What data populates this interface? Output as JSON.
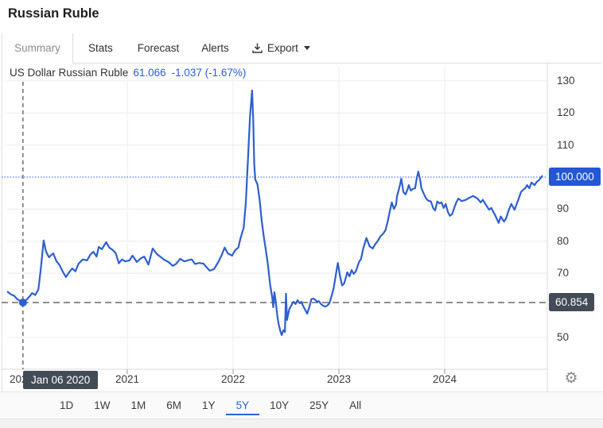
{
  "title": "Russian Ruble",
  "tabs": {
    "summary": "Summary",
    "stats": "Stats",
    "forecast": "Forecast",
    "alerts": "Alerts",
    "export": "Export"
  },
  "quote": {
    "instrument": "US Dollar Russian Ruble",
    "price": "61.066",
    "change": "-1.037",
    "change_pct": "(-1.67%)"
  },
  "range_buttons": {
    "items": [
      "1D",
      "1W",
      "1M",
      "6M",
      "1Y",
      "5Y",
      "10Y",
      "25Y",
      "All"
    ],
    "active": "5Y"
  },
  "icons": {
    "export": "download-icon",
    "export_caret": "chevron-down-icon",
    "settings": "gear-icon",
    "settings_glyph": "⚙"
  },
  "colors": {
    "line": "#2e5fd0",
    "accent_blue": "#2457d5",
    "badge_dark": "#434b57",
    "link_blue": "#2a5bd7",
    "grid": "#ececec",
    "axis": "#d9d9d9",
    "crosshair": "#4a4a4a",
    "active_range": "#2a62d9"
  },
  "chart_data": {
    "type": "line",
    "title": "US Dollar Russian Ruble",
    "x_ticks": [
      {
        "t": 2020,
        "label": "2020"
      },
      {
        "t": 2021,
        "label": "2021"
      },
      {
        "t": 2022,
        "label": "2022"
      },
      {
        "t": 2023,
        "label": "2023"
      },
      {
        "t": 2024,
        "label": "2024"
      }
    ],
    "y_ticks": [
      130,
      120,
      110,
      90,
      80,
      70,
      50
    ],
    "ylim": [
      46.5,
      133
    ],
    "xlim": [
      2019.87,
      2025.05
    ],
    "grid": true,
    "legend": "none",
    "ref_line": {
      "value": 100,
      "label": "100.000",
      "style": "dotted-blue"
    },
    "crosshair": {
      "t": 2020.014,
      "date_label": "Jan 06 2020",
      "value": 60.854,
      "value_label": "60.854"
    },
    "series": [
      {
        "name": "US Dollar Russian Ruble",
        "color": "#2e5fd0",
        "points": [
          [
            2019.87,
            64.2
          ],
          [
            2019.9,
            63.4
          ],
          [
            2019.93,
            63.0
          ],
          [
            2019.96,
            61.9
          ],
          [
            2019.99,
            61.3
          ],
          [
            2020.014,
            60.854
          ],
          [
            2020.05,
            61.8
          ],
          [
            2020.08,
            62.9
          ],
          [
            2020.1,
            63.8
          ],
          [
            2020.13,
            63.2
          ],
          [
            2020.16,
            65.0
          ],
          [
            2020.18,
            70.5
          ],
          [
            2020.21,
            80.2
          ],
          [
            2020.23,
            77.0
          ],
          [
            2020.24,
            76.2
          ],
          [
            2020.26,
            75.0
          ],
          [
            2020.3,
            76.2
          ],
          [
            2020.33,
            73.8
          ],
          [
            2020.36,
            72.5
          ],
          [
            2020.39,
            70.5
          ],
          [
            2020.42,
            68.8
          ],
          [
            2020.45,
            70.3
          ],
          [
            2020.48,
            71.5
          ],
          [
            2020.51,
            70.6
          ],
          [
            2020.54,
            73.0
          ],
          [
            2020.58,
            74.3
          ],
          [
            2020.62,
            74.0
          ],
          [
            2020.65,
            75.8
          ],
          [
            2020.68,
            76.7
          ],
          [
            2020.71,
            75.2
          ],
          [
            2020.73,
            78.2
          ],
          [
            2020.76,
            77.5
          ],
          [
            2020.8,
            79.7
          ],
          [
            2020.83,
            78.0
          ],
          [
            2020.86,
            77.3
          ],
          [
            2020.89,
            76.3
          ],
          [
            2020.92,
            73.1
          ],
          [
            2020.95,
            74.3
          ],
          [
            2020.98,
            73.7
          ],
          [
            2021.02,
            74.0
          ],
          [
            2021.05,
            75.5
          ],
          [
            2021.09,
            73.5
          ],
          [
            2021.13,
            74.7
          ],
          [
            2021.16,
            75.2
          ],
          [
            2021.2,
            72.7
          ],
          [
            2021.24,
            77.7
          ],
          [
            2021.28,
            76.0
          ],
          [
            2021.31,
            75.2
          ],
          [
            2021.35,
            74.2
          ],
          [
            2021.39,
            73.5
          ],
          [
            2021.43,
            72.3
          ],
          [
            2021.46,
            72.9
          ],
          [
            2021.5,
            74.5
          ],
          [
            2021.54,
            73.7
          ],
          [
            2021.57,
            74.0
          ],
          [
            2021.61,
            74.3
          ],
          [
            2021.64,
            72.9
          ],
          [
            2021.68,
            73.2
          ],
          [
            2021.72,
            73.0
          ],
          [
            2021.75,
            71.8
          ],
          [
            2021.78,
            70.8
          ],
          [
            2021.82,
            71.3
          ],
          [
            2021.86,
            73.5
          ],
          [
            2021.89,
            75.5
          ],
          [
            2021.92,
            78.0
          ],
          [
            2021.95,
            76.2
          ],
          [
            2021.99,
            75.5
          ],
          [
            2022.02,
            77.2
          ],
          [
            2022.05,
            78.0
          ],
          [
            2022.07,
            80.9
          ],
          [
            2022.1,
            84.2
          ],
          [
            2022.12,
            92.0
          ],
          [
            2022.14,
            105.0
          ],
          [
            2022.16,
            119.0
          ],
          [
            2022.18,
            127.0
          ],
          [
            2022.19,
            118.0
          ],
          [
            2022.2,
            104.0
          ],
          [
            2022.21,
            99.2
          ],
          [
            2022.23,
            97.8
          ],
          [
            2022.25,
            93.0
          ],
          [
            2022.27,
            86.5
          ],
          [
            2022.29,
            81.4
          ],
          [
            2022.31,
            77.2
          ],
          [
            2022.33,
            72.5
          ],
          [
            2022.35,
            66.5
          ],
          [
            2022.37,
            62.5
          ],
          [
            2022.38,
            59.4
          ],
          [
            2022.39,
            64.1
          ],
          [
            2022.4,
            61.9
          ],
          [
            2022.42,
            56.2
          ],
          [
            2022.43,
            54.2
          ],
          [
            2022.45,
            51.5
          ],
          [
            2022.46,
            50.7
          ],
          [
            2022.475,
            52.2
          ],
          [
            2022.49,
            51.7
          ],
          [
            2022.5,
            63.6
          ],
          [
            2022.51,
            55.4
          ],
          [
            2022.53,
            58.7
          ],
          [
            2022.55,
            59.9
          ],
          [
            2022.57,
            61.1
          ],
          [
            2022.59,
            60.4
          ],
          [
            2022.61,
            61.6
          ],
          [
            2022.63,
            60.6
          ],
          [
            2022.645,
            61.1
          ],
          [
            2022.66,
            59.9
          ],
          [
            2022.68,
            58.7
          ],
          [
            2022.7,
            57.4
          ],
          [
            2022.72,
            59.4
          ],
          [
            2022.74,
            61.9
          ],
          [
            2022.76,
            62.1
          ],
          [
            2022.78,
            61.6
          ],
          [
            2022.795,
            61.1
          ],
          [
            2022.81,
            61.3
          ],
          [
            2022.83,
            60.4
          ],
          [
            2022.85,
            59.9
          ],
          [
            2022.87,
            59.6
          ],
          [
            2022.89,
            59.9
          ],
          [
            2022.91,
            60.6
          ],
          [
            2022.93,
            62.8
          ],
          [
            2022.95,
            65.3
          ],
          [
            2022.975,
            70.3
          ],
          [
            2022.99,
            73.2
          ],
          [
            2023.01,
            69.3
          ],
          [
            2023.03,
            66.2
          ],
          [
            2023.05,
            66.8
          ],
          [
            2023.08,
            70.3
          ],
          [
            2023.1,
            69.0
          ],
          [
            2023.12,
            71.0
          ],
          [
            2023.14,
            69.8
          ],
          [
            2023.16,
            70.6
          ],
          [
            2023.19,
            73.5
          ],
          [
            2023.21,
            74.5
          ],
          [
            2023.23,
            77.7
          ],
          [
            2023.26,
            81.0
          ],
          [
            2023.29,
            78.4
          ],
          [
            2023.32,
            77.7
          ],
          [
            2023.34,
            78.9
          ],
          [
            2023.37,
            80.2
          ],
          [
            2023.39,
            81.4
          ],
          [
            2023.42,
            82.4
          ],
          [
            2023.44,
            83.4
          ],
          [
            2023.46,
            85.9
          ],
          [
            2023.48,
            89.1
          ],
          [
            2023.5,
            92.1
          ],
          [
            2023.52,
            90.1
          ],
          [
            2023.54,
            91.3
          ],
          [
            2023.55,
            94.1
          ],
          [
            2023.57,
            96.5
          ],
          [
            2023.59,
            99.5
          ],
          [
            2023.61,
            95.3
          ],
          [
            2023.63,
            94.6
          ],
          [
            2023.65,
            96.3
          ],
          [
            2023.66,
            97.5
          ],
          [
            2023.68,
            95.8
          ],
          [
            2023.7,
            96.3
          ],
          [
            2023.72,
            96.5
          ],
          [
            2023.735,
            99.5
          ],
          [
            2023.75,
            101.7
          ],
          [
            2023.77,
            98.8
          ],
          [
            2023.78,
            96.5
          ],
          [
            2023.8,
            95.0
          ],
          [
            2023.82,
            93.5
          ],
          [
            2023.835,
            92.9
          ],
          [
            2023.85,
            92.6
          ],
          [
            2023.87,
            92.4
          ],
          [
            2023.89,
            90.4
          ],
          [
            2023.91,
            89.6
          ],
          [
            2023.93,
            92.4
          ],
          [
            2023.95,
            91.8
          ],
          [
            2023.97,
            92.1
          ],
          [
            2023.99,
            90.4
          ],
          [
            2024.01,
            91.6
          ],
          [
            2024.03,
            89.1
          ],
          [
            2024.05,
            87.9
          ],
          [
            2024.07,
            88.4
          ],
          [
            2024.09,
            90.4
          ],
          [
            2024.11,
            92.1
          ],
          [
            2024.13,
            93.3
          ],
          [
            2024.16,
            92.5
          ],
          [
            2024.2,
            92.9
          ],
          [
            2024.23,
            93.5
          ],
          [
            2024.27,
            94.1
          ],
          [
            2024.31,
            93.3
          ],
          [
            2024.34,
            92.1
          ],
          [
            2024.36,
            92.9
          ],
          [
            2024.4,
            90.8
          ],
          [
            2024.42,
            89.8
          ],
          [
            2024.44,
            90.4
          ],
          [
            2024.48,
            87.9
          ],
          [
            2024.51,
            85.7
          ],
          [
            2024.53,
            87.7
          ],
          [
            2024.56,
            86.1
          ],
          [
            2024.58,
            87.1
          ],
          [
            2024.61,
            90.1
          ],
          [
            2024.63,
            91.6
          ],
          [
            2024.66,
            89.8
          ],
          [
            2024.7,
            93.3
          ],
          [
            2024.72,
            95.3
          ],
          [
            2024.74,
            96.0
          ],
          [
            2024.76,
            96.5
          ],
          [
            2024.78,
            97.5
          ],
          [
            2024.8,
            96.5
          ],
          [
            2024.82,
            98.3
          ],
          [
            2024.85,
            97.5
          ],
          [
            2024.87,
            98.5
          ],
          [
            2024.89,
            99.0
          ],
          [
            2024.92,
            100.3
          ]
        ]
      }
    ]
  }
}
